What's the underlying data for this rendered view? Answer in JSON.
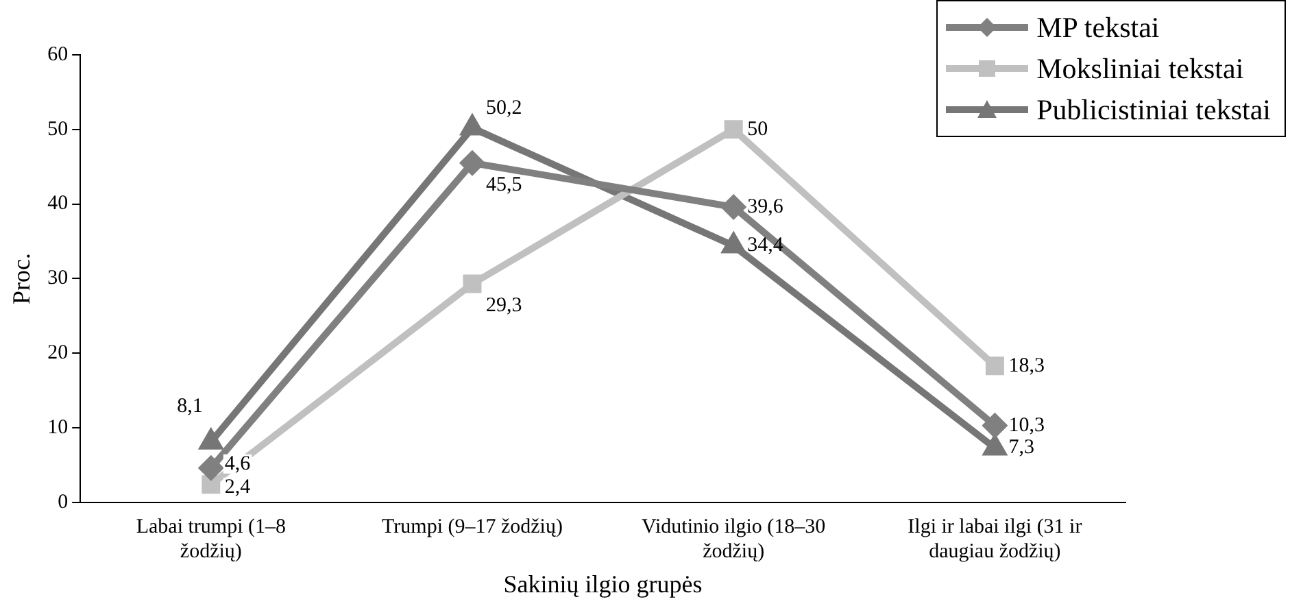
{
  "chart_data": {
    "type": "line",
    "xlabel": "Sakinių ilgio grupės",
    "ylabel": "Proc.",
    "categories": [
      "Labai trumpi (1–8 žodžių)",
      "Trumpi (9–17 žodžių)",
      "Vidutinio ilgio (18–30 žodžių)",
      "Ilgi ir labai ilgi (31 ir daugiau žodžių)"
    ],
    "series": [
      {
        "name": "MP tekstai",
        "color": "#808080",
        "marker": "diamond",
        "values": [
          4.6,
          45.5,
          39.6,
          10.3
        ],
        "value_labels": [
          "4,6",
          "45,5",
          "39,6",
          "10,3"
        ]
      },
      {
        "name": "Moksliniai tekstai",
        "color": "#c0c0c0",
        "marker": "square",
        "values": [
          2.4,
          29.3,
          50,
          18.3
        ],
        "value_labels": [
          "2,4",
          "29,3",
          "50",
          "18,3"
        ]
      },
      {
        "name": "Publicistiniai tekstai",
        "color": "#767676",
        "marker": "triangle",
        "values": [
          8.1,
          50.2,
          34.4,
          7.3
        ],
        "value_labels": [
          "8,1",
          "50,2",
          "34,4",
          "7,3"
        ]
      }
    ],
    "ylim": [
      0,
      60
    ],
    "yticks": [
      0,
      10,
      20,
      30,
      40,
      50,
      60
    ],
    "grid": false,
    "legend": "top right"
  }
}
